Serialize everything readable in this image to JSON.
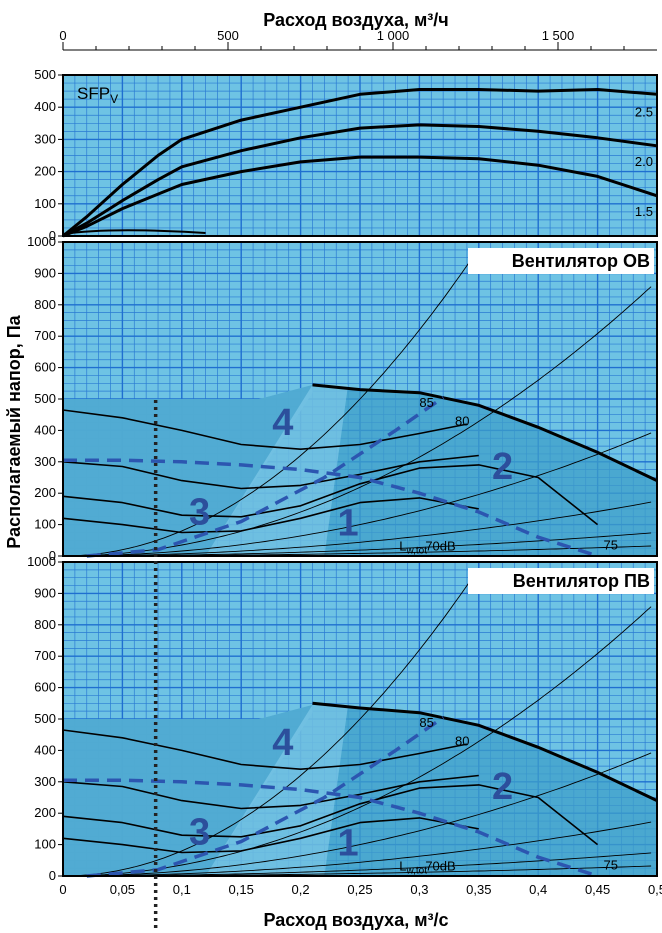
{
  "colors": {
    "panel_bg": "#6ec3e4",
    "grid": "#1f6fd0",
    "zone_fill": "#3f9fc9",
    "zone_light": "#8cd2ee",
    "dashed": "#2c56b0",
    "zone_label": "#2c4f9c"
  },
  "titles": {
    "top_axis": "Расход воздуха, м³/ч",
    "bottom_axis": "Расход воздуха, м³/с",
    "y_axis": "Располагаемый напор, Па"
  },
  "chart_data": [
    {
      "type": "line",
      "panel": "sfp",
      "label": "SFP",
      "label_sub": "V",
      "x_axis": {
        "ticks": [
          0,
          500,
          1000,
          1500
        ],
        "tick_labels": [
          "0",
          "500",
          "1 000",
          "1 500"
        ],
        "range": [
          0,
          1800
        ]
      },
      "y_axis": {
        "ticks": [
          0,
          100,
          200,
          300,
          400,
          500
        ],
        "range": [
          0,
          500
        ]
      },
      "grid": true,
      "series": [
        {
          "name": "2.5",
          "x": [
            0,
            0.02,
            0.05,
            0.08,
            0.1,
            0.15,
            0.2,
            0.25,
            0.3,
            0.35,
            0.4,
            0.45,
            0.5
          ],
          "y": [
            0,
            60,
            160,
            250,
            300,
            360,
            400,
            440,
            455,
            455,
            450,
            455,
            440
          ]
        },
        {
          "name": "2.0",
          "x": [
            0,
            0.02,
            0.05,
            0.08,
            0.1,
            0.15,
            0.2,
            0.25,
            0.3,
            0.35,
            0.4,
            0.45,
            0.5
          ],
          "y": [
            0,
            40,
            110,
            175,
            215,
            265,
            305,
            335,
            345,
            340,
            325,
            305,
            280
          ]
        },
        {
          "name": "1.5",
          "x": [
            0,
            0.02,
            0.05,
            0.08,
            0.1,
            0.15,
            0.2,
            0.25,
            0.3,
            0.35,
            0.4,
            0.45,
            0.5
          ],
          "y": [
            0,
            30,
            85,
            130,
            160,
            200,
            230,
            245,
            245,
            240,
            220,
            185,
            125
          ]
        }
      ]
    },
    {
      "type": "line",
      "panel": "ov",
      "title": "Вентилятор ОВ",
      "x_axis": {
        "range": [
          0,
          0.5
        ]
      },
      "y_axis": {
        "ticks": [
          0,
          100,
          200,
          300,
          400,
          500,
          600,
          700,
          800,
          900,
          1000
        ],
        "range": [
          0,
          1000
        ]
      },
      "grid": true,
      "zones": [
        {
          "label": "1",
          "x": 0.24,
          "y": 110
        },
        {
          "label": "2",
          "x": 0.37,
          "y": 290
        },
        {
          "label": "3",
          "x": 0.115,
          "y": 145
        },
        {
          "label": "4",
          "x": 0.185,
          "y": 430
        }
      ],
      "max_curve": {
        "x": [
          0.21,
          0.25,
          0.3,
          0.35,
          0.4,
          0.45,
          0.5
        ],
        "y": [
          545,
          530,
          520,
          480,
          410,
          330,
          240
        ]
      },
      "pressure_curves": [
        {
          "x": [
            0,
            0.05,
            0.1,
            0.15,
            0.2,
            0.25,
            0.3,
            0.34
          ],
          "y": [
            465,
            440,
            400,
            355,
            340,
            355,
            390,
            420
          ]
        },
        {
          "x": [
            0,
            0.05,
            0.1,
            0.15,
            0.2,
            0.25,
            0.3,
            0.35
          ],
          "y": [
            300,
            285,
            240,
            215,
            225,
            260,
            300,
            320
          ]
        },
        {
          "x": [
            0,
            0.05,
            0.1,
            0.15,
            0.2,
            0.25,
            0.3,
            0.35,
            0.4,
            0.45
          ],
          "y": [
            190,
            170,
            130,
            125,
            160,
            230,
            280,
            290,
            250,
            100
          ]
        },
        {
          "x": [
            0,
            0.05,
            0.1,
            0.15,
            0.2,
            0.25,
            0.3,
            0.35
          ],
          "y": [
            120,
            100,
            75,
            80,
            120,
            170,
            185,
            150
          ]
        }
      ],
      "noise_labels": [
        {
          "text": "85",
          "x": 0.3,
          "y": 475
        },
        {
          "text": "80",
          "x": 0.33,
          "y": 415
        },
        {
          "text": "75",
          "x": 0.455,
          "y": 20
        },
        {
          "text": "70dB",
          "x": 0.305,
          "y": 30
        }
      ],
      "noise_prefix": "L",
      "noise_sub": "w,tot",
      "dashed_limit": {
        "x": [
          0,
          0.05,
          0.1,
          0.15,
          0.2,
          0.25,
          0.3,
          0.35,
          0.4,
          0.45
        ],
        "y": [
          305,
          305,
          300,
          290,
          275,
          250,
          200,
          140,
          60,
          0
        ]
      },
      "dashed_diag": {
        "x": [
          0.02,
          0.08,
          0.15,
          0.22,
          0.28,
          0.32
        ],
        "y": [
          0,
          20,
          110,
          250,
          400,
          505
        ]
      }
    },
    {
      "type": "line",
      "panel": "pv",
      "title": "Вентилятор ПВ",
      "x_axis": {
        "ticks": [
          0,
          0.05,
          0.1,
          0.15,
          0.2,
          0.25,
          0.3,
          0.35,
          0.4,
          0.45,
          0.5
        ],
        "tick_labels": [
          "0",
          "0,05",
          "0,1",
          "0,15",
          "0,2",
          "0,25",
          "0,3",
          "0,35",
          "0,4",
          "0,45",
          "0,5"
        ],
        "range": [
          0,
          0.5
        ]
      },
      "y_axis": {
        "ticks": [
          0,
          100,
          200,
          300,
          400,
          500,
          600,
          700,
          800,
          900,
          1000
        ],
        "range": [
          0,
          1000
        ]
      },
      "grid": true,
      "zones": [
        {
          "label": "1",
          "x": 0.24,
          "y": 110
        },
        {
          "label": "2",
          "x": 0.37,
          "y": 290
        },
        {
          "label": "3",
          "x": 0.115,
          "y": 145
        },
        {
          "label": "4",
          "x": 0.185,
          "y": 430
        }
      ],
      "max_curve": {
        "x": [
          0.21,
          0.25,
          0.3,
          0.35,
          0.4,
          0.45,
          0.5
        ],
        "y": [
          550,
          535,
          520,
          480,
          410,
          330,
          240
        ]
      },
      "pressure_curves": [
        {
          "x": [
            0,
            0.05,
            0.1,
            0.15,
            0.2,
            0.25,
            0.3,
            0.34
          ],
          "y": [
            465,
            440,
            400,
            355,
            340,
            355,
            390,
            420
          ]
        },
        {
          "x": [
            0,
            0.05,
            0.1,
            0.15,
            0.2,
            0.25,
            0.3,
            0.35
          ],
          "y": [
            300,
            285,
            240,
            215,
            225,
            260,
            300,
            320
          ]
        },
        {
          "x": [
            0,
            0.05,
            0.1,
            0.15,
            0.2,
            0.25,
            0.3,
            0.35,
            0.4,
            0.45
          ],
          "y": [
            190,
            170,
            130,
            125,
            160,
            230,
            280,
            290,
            250,
            100
          ]
        },
        {
          "x": [
            0,
            0.05,
            0.1,
            0.15,
            0.2,
            0.25,
            0.3,
            0.35
          ],
          "y": [
            120,
            100,
            75,
            80,
            120,
            170,
            185,
            150
          ]
        }
      ],
      "noise_labels": [
        {
          "text": "85",
          "x": 0.3,
          "y": 475
        },
        {
          "text": "80",
          "x": 0.33,
          "y": 415
        },
        {
          "text": "75",
          "x": 0.455,
          "y": 20
        },
        {
          "text": "70dB",
          "x": 0.305,
          "y": 30
        }
      ],
      "noise_prefix": "L",
      "noise_sub": "w,tot",
      "dashed_limit": {
        "x": [
          0,
          0.05,
          0.1,
          0.15,
          0.2,
          0.25,
          0.3,
          0.35,
          0.4,
          0.45
        ],
        "y": [
          305,
          305,
          300,
          290,
          275,
          250,
          200,
          140,
          60,
          0
        ]
      },
      "dashed_diag": {
        "x": [
          0.02,
          0.08,
          0.15,
          0.22,
          0.28,
          0.32
        ],
        "y": [
          0,
          20,
          110,
          250,
          400,
          505
        ]
      }
    }
  ],
  "reference_line": {
    "x": 0.078
  }
}
